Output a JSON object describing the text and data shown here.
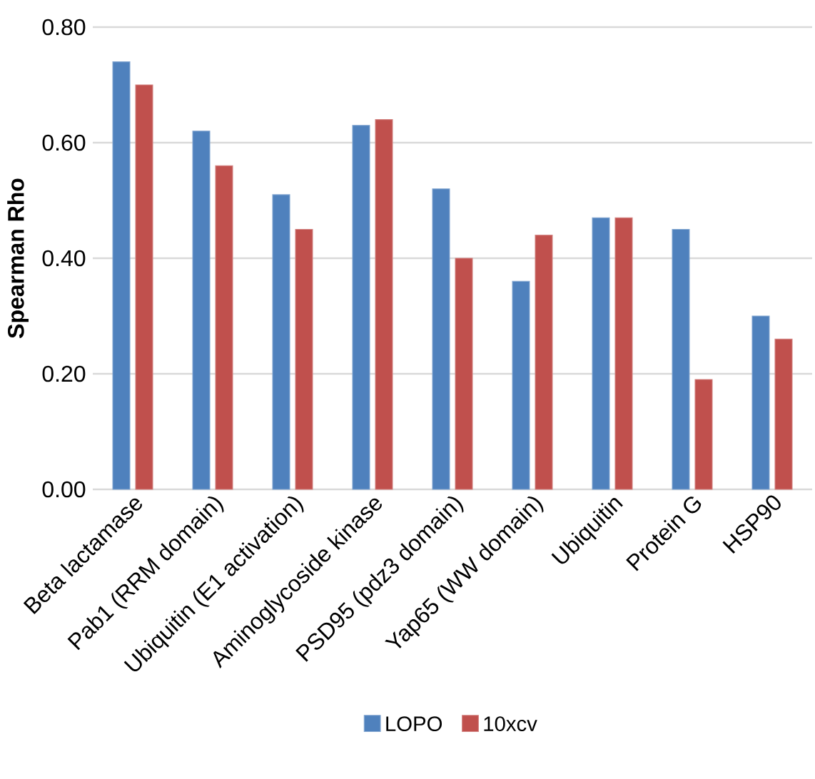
{
  "chart_data": {
    "type": "bar",
    "ylabel": "Spearman Rho",
    "categories": [
      "Beta lactamase",
      "Pab1 (RRM domain)",
      "Ubiquitin (E1 activation)",
      "Aminoglycoside kinase",
      "PSD95 (pdz3 domain)",
      "Yap65 (WW domain)",
      "Ubiquitin",
      "Protein G",
      "HSP90"
    ],
    "series": [
      {
        "name": "LOPO",
        "color": "#4f81bd",
        "values": [
          0.74,
          0.62,
          0.51,
          0.63,
          0.52,
          0.36,
          0.47,
          0.45,
          0.3
        ]
      },
      {
        "name": "10xcv",
        "color": "#c0504d",
        "values": [
          0.7,
          0.56,
          0.45,
          0.64,
          0.4,
          0.44,
          0.47,
          0.19,
          0.26
        ]
      }
    ],
    "ylim": [
      0,
      0.8
    ],
    "yticks": [
      {
        "value": 0,
        "label": "0.00"
      },
      {
        "value": 0.2,
        "label": "0.20"
      },
      {
        "value": 0.4,
        "label": "0.40"
      },
      {
        "value": 0.6,
        "label": "0.60"
      },
      {
        "value": 0.8,
        "label": "0.80"
      }
    ],
    "grid": "y",
    "legend": "bottom"
  }
}
